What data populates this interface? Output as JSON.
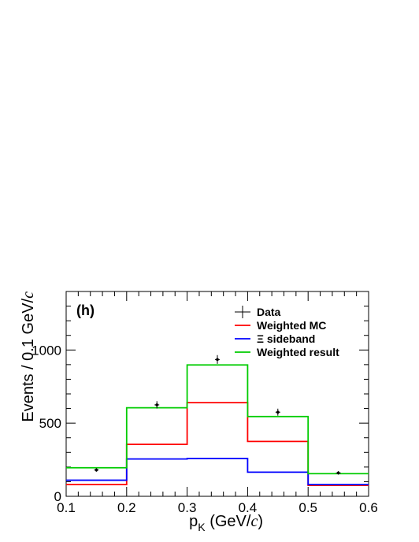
{
  "chart_data": {
    "type": "histogram",
    "panel_label": "(h)",
    "xlabel_main": "p",
    "xlabel_sub": "K",
    "xlabel_unit_pre": " (GeV/",
    "xlabel_unit_c": "c",
    "xlabel_unit_post": ")",
    "ylabel_pre": "Events / 0.1 GeV/",
    "ylabel_c": "c",
    "xlim": [
      0.1,
      0.6
    ],
    "ylim": [
      0,
      1400
    ],
    "x_ticks": [
      "0.1",
      "0.2",
      "0.3",
      "0.4",
      "0.5",
      "0.6"
    ],
    "y_ticks": [
      "0",
      "500",
      "1000"
    ],
    "bin_edges": [
      0.1,
      0.2,
      0.3,
      0.4,
      0.5,
      0.6
    ],
    "data": {
      "name": "Data",
      "x": [
        0.15,
        0.25,
        0.35,
        0.45,
        0.55
      ],
      "y": [
        180,
        625,
        935,
        575,
        160
      ],
      "err": [
        12,
        25,
        30,
        24,
        12
      ]
    },
    "series": [
      {
        "name": "Weighted MC",
        "color": "#ff0000",
        "values": [
          80,
          355,
          640,
          375,
          75
        ]
      },
      {
        "name": "Ξ sideband",
        "color": "#0000ff",
        "values": [
          110,
          255,
          258,
          165,
          80
        ]
      },
      {
        "name": "Weighted result",
        "color": "#00cc00",
        "values": [
          195,
          605,
          898,
          545,
          155
        ]
      }
    ],
    "legend": {
      "placement": "top-right",
      "entries": [
        "Data",
        "Weighted MC",
        "Ξ sideband",
        "Weighted result"
      ]
    }
  }
}
